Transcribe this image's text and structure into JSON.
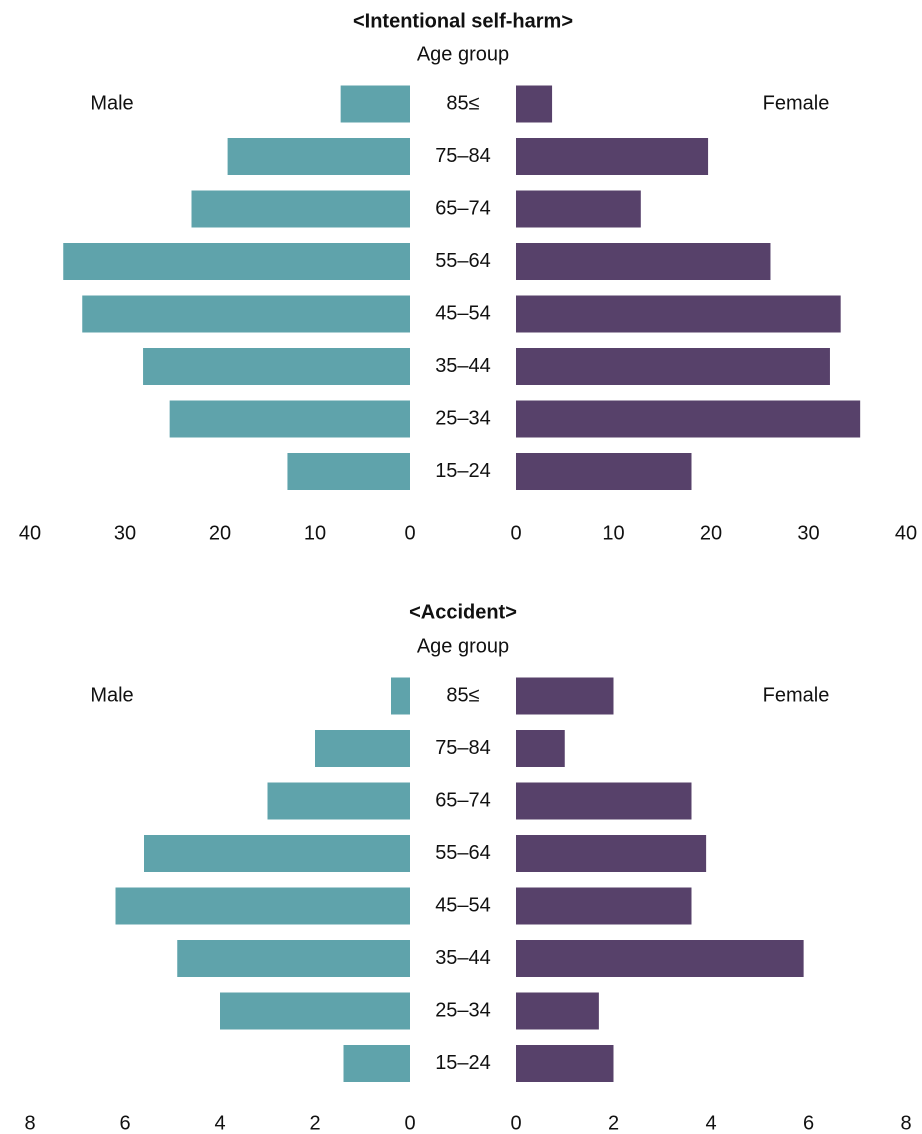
{
  "colors": {
    "male": "#5fa3ab",
    "female": "#57416a"
  },
  "chart_data": [
    {
      "type": "bar",
      "orientation": "horizontal-population-pyramid",
      "title": "<Intentional self-harm>",
      "subtitle": "Age group",
      "left_label": "Male",
      "right_label": "Female",
      "categories": [
        "85≤",
        "75–84",
        "65–74",
        "55–64",
        "45–54",
        "35–44",
        "25–34",
        "15–24"
      ],
      "series": [
        {
          "name": "Male",
          "side": "left",
          "values": [
            7.3,
            19.2,
            23.0,
            36.5,
            34.5,
            28.1,
            25.3,
            12.9
          ]
        },
        {
          "name": "Female",
          "side": "right",
          "values": [
            3.7,
            19.7,
            12.8,
            26.1,
            33.3,
            32.2,
            35.3,
            18.0
          ]
        }
      ],
      "xlim": [
        0,
        40
      ],
      "ticks": [
        0,
        10,
        20,
        30,
        40
      ],
      "tick_labels_left": [
        "40",
        "30",
        "20",
        "10",
        "0"
      ],
      "tick_labels_right": [
        "0",
        "10",
        "20",
        "30",
        "40"
      ],
      "grid": false,
      "legend": "none"
    },
    {
      "type": "bar",
      "orientation": "horizontal-population-pyramid",
      "title": "<Accident>",
      "subtitle": "Age group",
      "left_label": "Male",
      "right_label": "Female",
      "categories": [
        "85≤",
        "75–84",
        "65–74",
        "55–64",
        "45–54",
        "35–44",
        "25–34",
        "15–24"
      ],
      "series": [
        {
          "name": "Male",
          "side": "left",
          "values": [
            0.4,
            2.0,
            3.0,
            5.6,
            6.2,
            4.9,
            4.0,
            1.4
          ]
        },
        {
          "name": "Female",
          "side": "right",
          "values": [
            2.0,
            1.0,
            3.6,
            3.9,
            3.6,
            5.9,
            1.7,
            2.0
          ]
        }
      ],
      "xlim": [
        0,
        8
      ],
      "ticks": [
        0,
        2,
        4,
        6,
        8
      ],
      "tick_labels_left": [
        "8",
        "6",
        "4",
        "2",
        "0"
      ],
      "tick_labels_right": [
        "0",
        "2",
        "4",
        "6",
        "8"
      ],
      "grid": false,
      "legend": "none"
    }
  ]
}
